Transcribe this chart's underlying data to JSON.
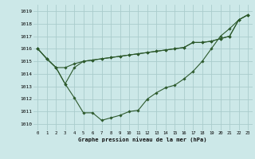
{
  "xlabel": "Graphe pression niveau de la mer (hPa)",
  "background_color": "#cce8e8",
  "grid_color": "#aacccc",
  "line_color": "#2d5a2d",
  "marker": "D",
  "markersize": 1.8,
  "linewidth": 0.8,
  "xlim": [
    -0.5,
    23.5
  ],
  "ylim": [
    1009.5,
    1019.5
  ],
  "yticks": [
    1010,
    1011,
    1012,
    1013,
    1014,
    1015,
    1016,
    1017,
    1018,
    1019
  ],
  "xticks": [
    0,
    1,
    2,
    3,
    4,
    5,
    6,
    7,
    8,
    9,
    10,
    11,
    12,
    13,
    14,
    15,
    16,
    17,
    18,
    19,
    20,
    21,
    22,
    23
  ],
  "series": [
    [
      1016.0,
      1015.2,
      1014.5,
      1013.2,
      1012.1,
      1010.9,
      1010.9,
      1010.3,
      1010.5,
      1010.7,
      1011.0,
      1011.1,
      1012.0,
      1012.5,
      1012.9,
      1013.1,
      1013.6,
      1014.2,
      1015.0,
      1016.0,
      1017.0,
      1017.6,
      1018.3,
      1018.7
    ],
    [
      1016.0,
      1015.2,
      1014.5,
      1014.5,
      1014.8,
      1015.0,
      1015.1,
      1015.2,
      1015.3,
      1015.4,
      1015.5,
      1015.6,
      1015.7,
      1015.8,
      1015.9,
      1016.0,
      1016.1,
      1016.5,
      1016.5,
      1016.6,
      1016.8,
      1017.0,
      1018.3,
      1018.7
    ],
    [
      1016.0,
      1015.2,
      1014.5,
      1013.2,
      1014.5,
      1015.0,
      1015.1,
      1015.2,
      1015.3,
      1015.4,
      1015.5,
      1015.6,
      1015.7,
      1015.8,
      1015.9,
      1016.0,
      1016.1,
      1016.5,
      1016.5,
      1016.6,
      1016.8,
      1017.0,
      1018.3,
      1018.7
    ]
  ]
}
